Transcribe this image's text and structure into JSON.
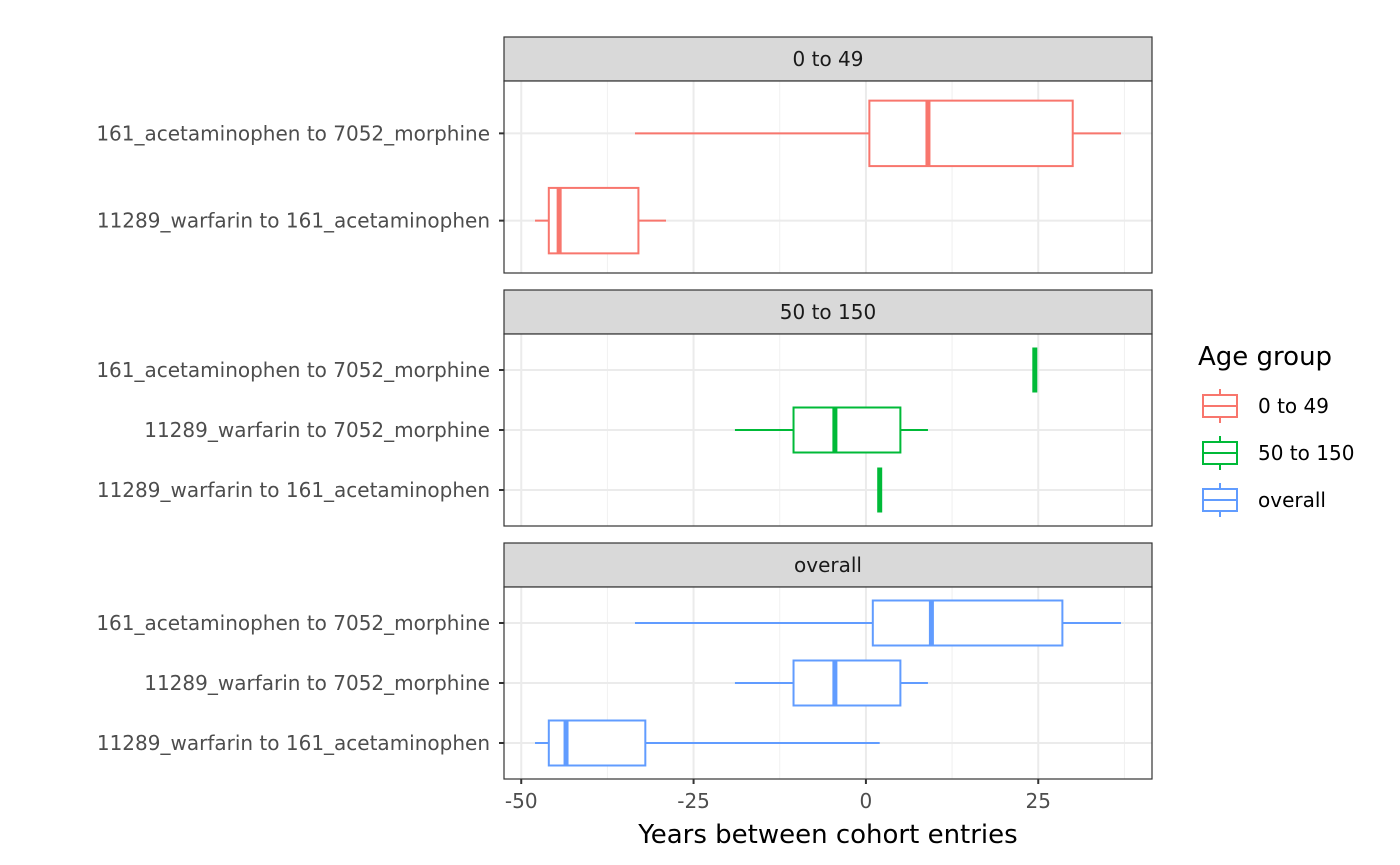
{
  "chart_data": {
    "type": "boxplot",
    "orientation": "horizontal",
    "facet_layout": "vertical stacked panels",
    "xlabel": "Years between cohort entries",
    "xlim": [
      -52.5,
      41.5
    ],
    "x_ticks": [
      -50,
      -25,
      0,
      25
    ],
    "x_tick_labels": [
      "-50",
      "-25",
      "0",
      "25"
    ],
    "grid": true,
    "legend": {
      "title": "Age group",
      "position": "right",
      "entries": [
        {
          "label": "0 to 49",
          "color": "#F8766D"
        },
        {
          "label": "50 to 150",
          "color": "#00BA38"
        },
        {
          "label": "overall",
          "color": "#619CFF"
        }
      ]
    },
    "panels": [
      {
        "strip": "0 to 49",
        "color": "#F8766D",
        "categories": [
          "161_acetaminophen to 7052_morphine",
          "11289_warfarin to 161_acetaminophen"
        ],
        "boxes": [
          {
            "min": -33.5,
            "q1": 0.5,
            "median": 9,
            "q3": 30,
            "max": 37
          },
          {
            "min": -48,
            "q1": -46,
            "median": -44.5,
            "q3": -33,
            "max": -29
          }
        ]
      },
      {
        "strip": "50 to 150",
        "color": "#00BA38",
        "categories": [
          "161_acetaminophen to 7052_morphine",
          "11289_warfarin to 7052_morphine",
          "11289_warfarin to 161_acetaminophen"
        ],
        "boxes": [
          {
            "min": 24.5,
            "q1": 24.5,
            "median": 24.5,
            "q3": 24.5,
            "max": 24.5
          },
          {
            "min": -19,
            "q1": -10.5,
            "median": -4.5,
            "q3": 5,
            "max": 9
          },
          {
            "min": 2,
            "q1": 2,
            "median": 2,
            "q3": 2,
            "max": 2
          }
        ]
      },
      {
        "strip": "overall",
        "color": "#619CFF",
        "categories": [
          "161_acetaminophen to 7052_morphine",
          "11289_warfarin to 7052_morphine",
          "11289_warfarin to 161_acetaminophen"
        ],
        "boxes": [
          {
            "min": -33.5,
            "q1": 1,
            "median": 9.5,
            "q3": 28.5,
            "max": 37
          },
          {
            "min": -19,
            "q1": -10.5,
            "median": -4.5,
            "q3": 5,
            "max": 9
          },
          {
            "min": -48,
            "q1": -46,
            "median": -43.5,
            "q3": -32,
            "max": 2
          }
        ]
      }
    ]
  }
}
